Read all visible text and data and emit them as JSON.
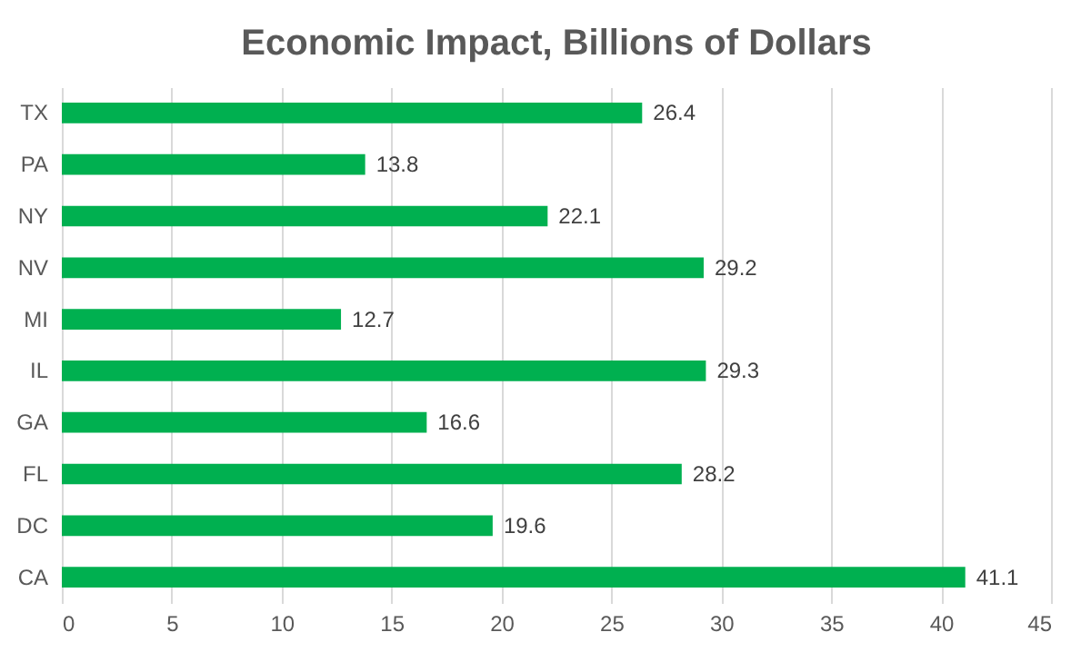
{
  "chart_data": {
    "type": "bar",
    "orientation": "horizontal",
    "title": "Economic Impact, Billions of Dollars",
    "categories": [
      "TX",
      "PA",
      "NY",
      "NV",
      "MI",
      "IL",
      "GA",
      "FL",
      "DC",
      "CA"
    ],
    "values": [
      26.4,
      13.8,
      22.1,
      29.2,
      12.7,
      29.3,
      16.6,
      28.2,
      19.6,
      41.1
    ],
    "color": "#00b050",
    "xlim": [
      0,
      45
    ],
    "xticks": [
      0,
      5,
      10,
      15,
      20,
      25,
      30,
      35,
      40,
      45
    ],
    "grid": "x",
    "data_labels": true
  }
}
